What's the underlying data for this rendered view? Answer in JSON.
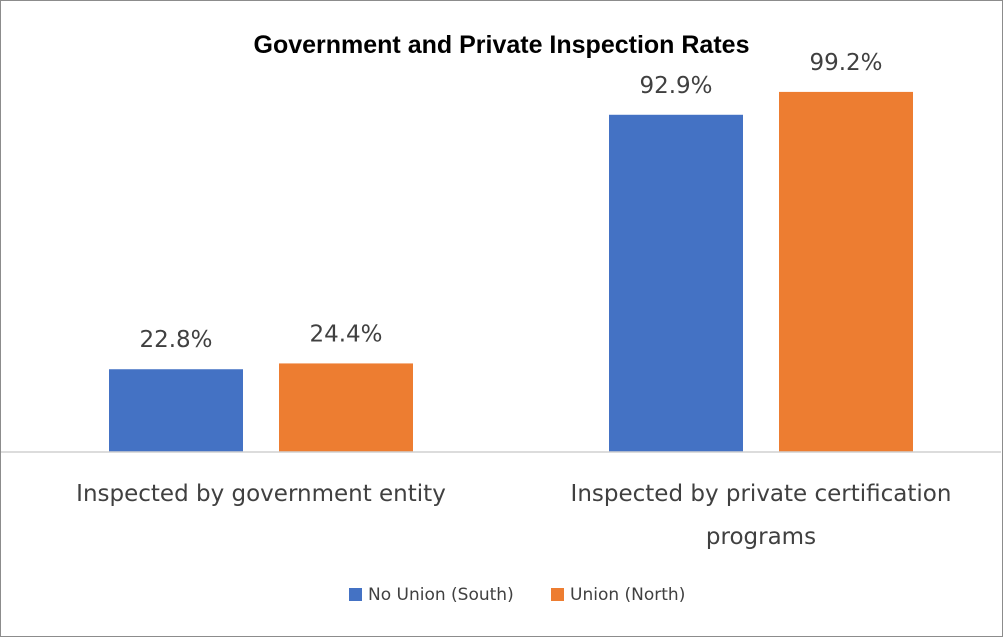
{
  "chart_data": {
    "type": "bar",
    "title": "Government and Private Inspection Rates",
    "categories": [
      [
        "Inspected by government entity"
      ],
      [
        "Inspected by private certification",
        "programs"
      ]
    ],
    "series": [
      {
        "name": "No Union (South)",
        "color": "#4472C4",
        "values": [
          22.8,
          92.9
        ],
        "labels": [
          "22.8%",
          "92.9%"
        ]
      },
      {
        "name": "Union (North)",
        "color": "#ED7D31",
        "values": [
          24.4,
          99.2
        ],
        "labels": [
          "24.4%",
          "99.2%"
        ]
      }
    ],
    "ylim": [
      0,
      100
    ],
    "grid": false,
    "legend_position": "bottom"
  }
}
